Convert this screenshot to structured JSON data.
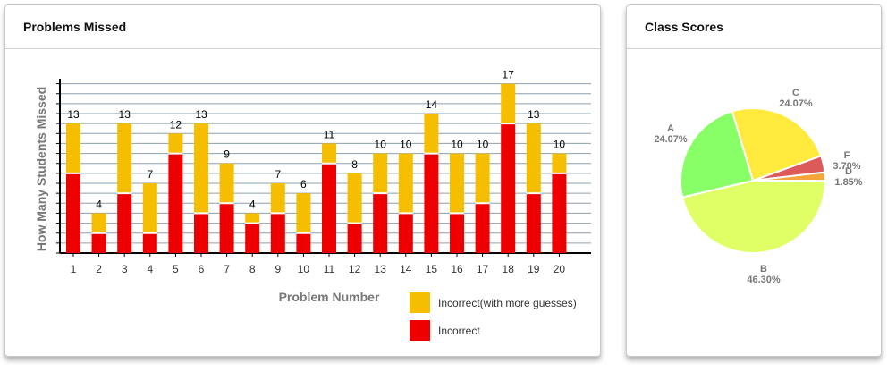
{
  "cards": {
    "missed_title": "Problems Missed",
    "scores_title": "Class Scores"
  },
  "colors": {
    "incorrect": "#ee0000",
    "incorrect_more": "#f6be00",
    "grid": "#8aa0b0",
    "pie_B": "#e0ff66",
    "pie_A": "#88ff66",
    "pie_C": "#ffea3d",
    "pie_F": "#dd5a5a",
    "pie_D": "#f3a53a"
  },
  "chart_data": [
    {
      "type": "bar",
      "stacked": true,
      "xlabel": "Problem Number",
      "ylabel": "How Many Students Missed",
      "categories": [
        "1",
        "2",
        "3",
        "4",
        "5",
        "6",
        "7",
        "8",
        "9",
        "10",
        "11",
        "12",
        "13",
        "14",
        "15",
        "16",
        "17",
        "18",
        "19",
        "20"
      ],
      "series": [
        {
          "name": "Incorrect",
          "values": [
            8,
            2,
            6,
            2,
            10,
            4,
            5,
            3,
            4,
            2,
            9,
            3,
            6,
            4,
            10,
            4,
            5,
            13,
            6,
            8
          ]
        },
        {
          "name": "Incorrect(with more guesses)",
          "values": [
            5,
            2,
            7,
            5,
            2,
            9,
            4,
            1,
            3,
            4,
            2,
            5,
            4,
            6,
            4,
            6,
            5,
            4,
            7,
            2
          ]
        }
      ],
      "totals": [
        13,
        4,
        13,
        7,
        12,
        13,
        9,
        4,
        7,
        6,
        11,
        8,
        10,
        10,
        14,
        10,
        10,
        17,
        13,
        10
      ],
      "ylim": [
        0,
        17.5
      ],
      "grid": true,
      "legend": "bottom-right"
    },
    {
      "type": "pie",
      "slices": [
        {
          "label": "B",
          "percent": "46.30%",
          "value": 46.3
        },
        {
          "label": "A",
          "percent": "24.07%",
          "value": 24.07
        },
        {
          "label": "C",
          "percent": "24.07%",
          "value": 24.07
        },
        {
          "label": "F",
          "percent": "3.70%",
          "value": 3.7
        },
        {
          "label": "D",
          "percent": "1.85%",
          "value": 1.85
        }
      ]
    }
  ]
}
